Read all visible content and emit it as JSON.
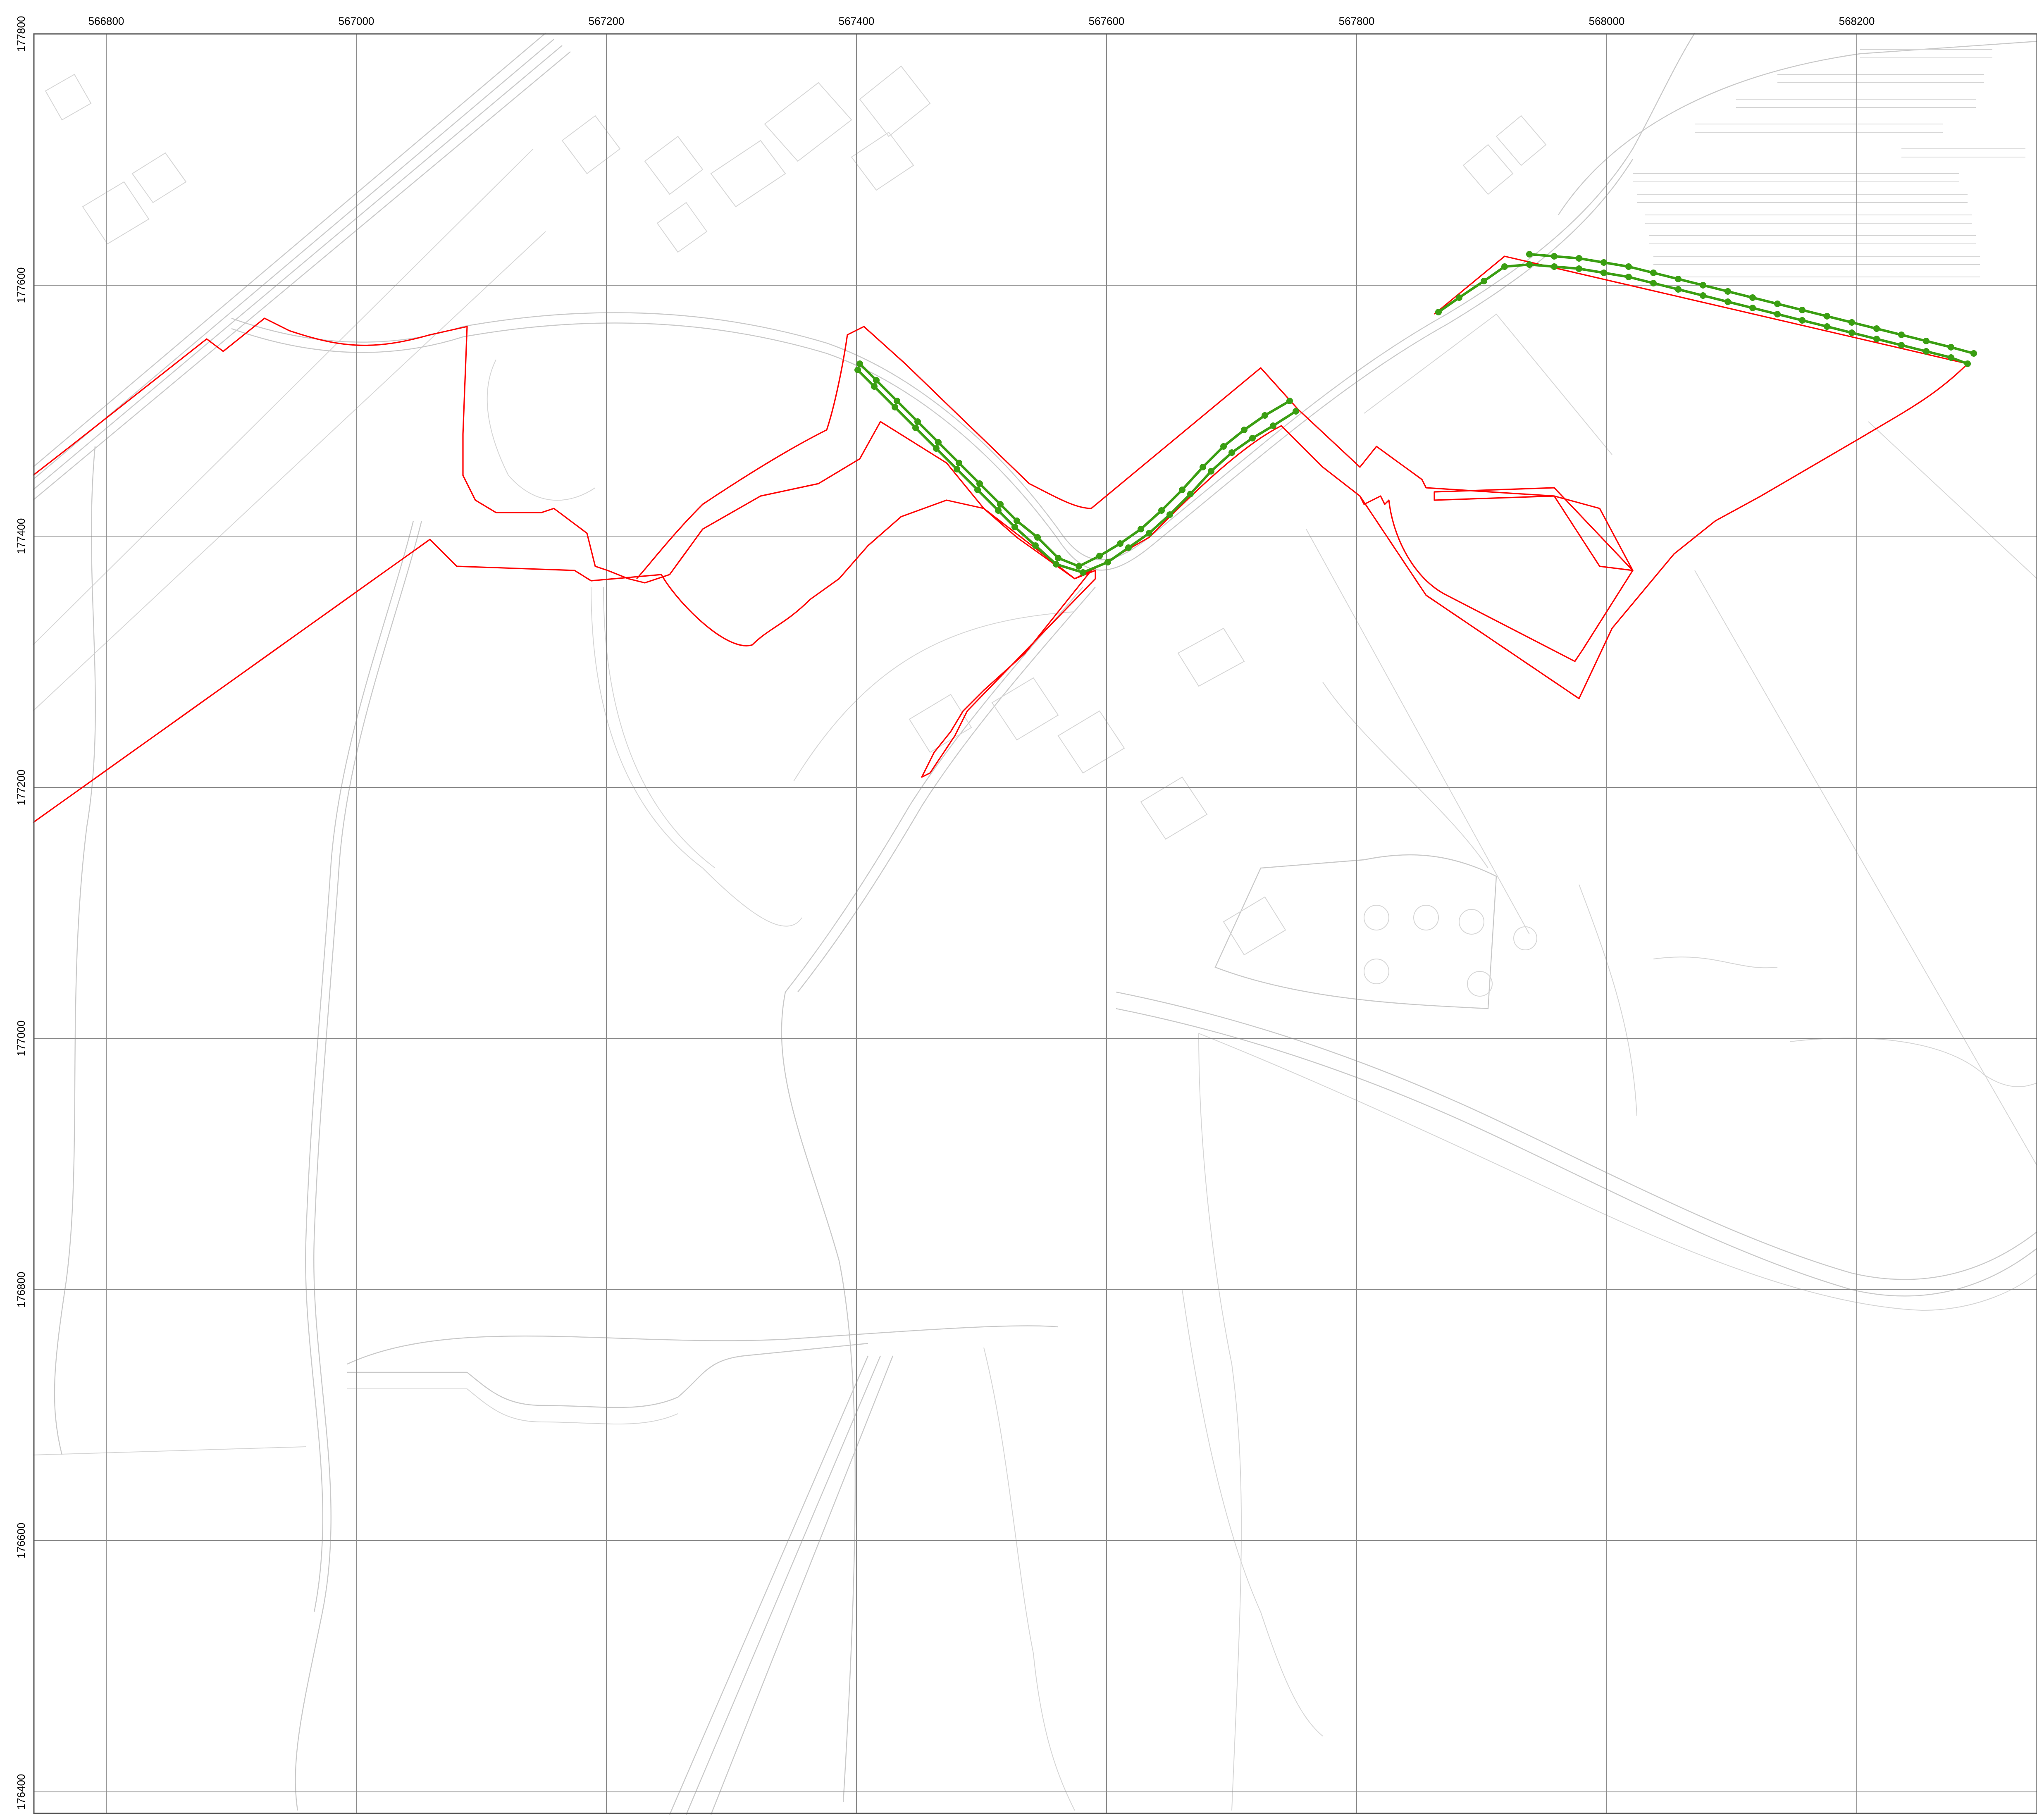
{
  "map": {
    "x_ticks": [
      "566800",
      "567000",
      "567200",
      "567400",
      "567600",
      "567800",
      "568000",
      "568200"
    ],
    "y_ticks": [
      "177800",
      "177600",
      "177400",
      "177200",
      "177000",
      "176800",
      "176600",
      "176400"
    ],
    "colors": {
      "grid": "#8c8c8c",
      "basemap": "#c9c9c9",
      "boundary": "#ff0000",
      "route": "#3a9e12",
      "vertex": "#3a9e12"
    }
  }
}
